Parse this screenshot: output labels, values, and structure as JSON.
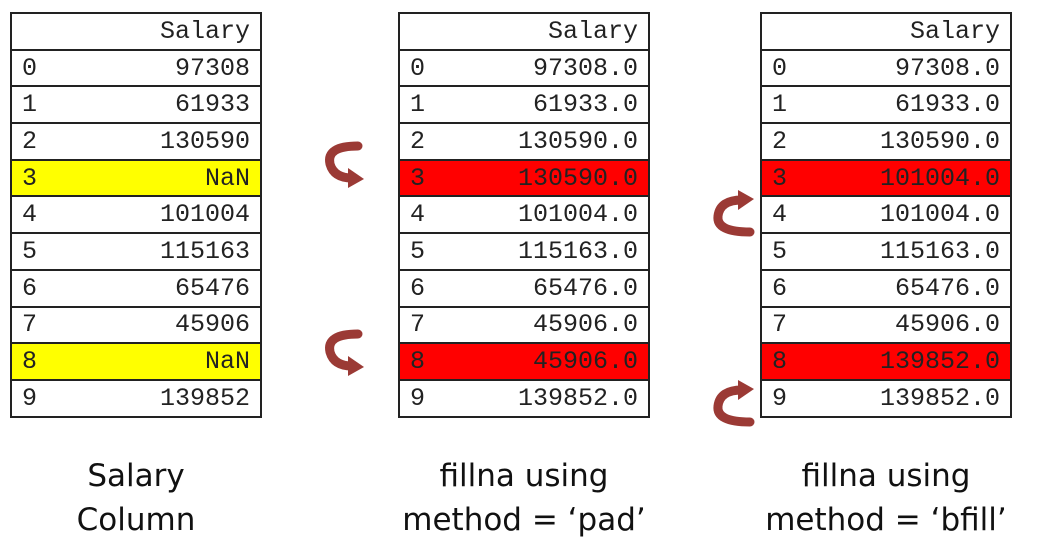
{
  "tables": [
    {
      "header": "Salary",
      "rows": [
        {
          "idx": "0",
          "val": "97308",
          "highlight": ""
        },
        {
          "idx": "1",
          "val": "61933",
          "highlight": ""
        },
        {
          "idx": "2",
          "val": "130590",
          "highlight": ""
        },
        {
          "idx": "3",
          "val": "NaN",
          "highlight": "yellow"
        },
        {
          "idx": "4",
          "val": "101004",
          "highlight": ""
        },
        {
          "idx": "5",
          "val": "115163",
          "highlight": ""
        },
        {
          "idx": "6",
          "val": "65476",
          "highlight": ""
        },
        {
          "idx": "7",
          "val": "45906",
          "highlight": ""
        },
        {
          "idx": "8",
          "val": "NaN",
          "highlight": "yellow"
        },
        {
          "idx": "9",
          "val": "139852",
          "highlight": ""
        }
      ],
      "caption": [
        "Salary",
        "Column"
      ]
    },
    {
      "header": "Salary",
      "rows": [
        {
          "idx": "0",
          "val": "97308.0",
          "highlight": ""
        },
        {
          "idx": "1",
          "val": "61933.0",
          "highlight": ""
        },
        {
          "idx": "2",
          "val": "130590.0",
          "highlight": ""
        },
        {
          "idx": "3",
          "val": "130590.0",
          "highlight": "red"
        },
        {
          "idx": "4",
          "val": "101004.0",
          "highlight": ""
        },
        {
          "idx": "5",
          "val": "115163.0",
          "highlight": ""
        },
        {
          "idx": "6",
          "val": "65476.0",
          "highlight": ""
        },
        {
          "idx": "7",
          "val": "45906.0",
          "highlight": ""
        },
        {
          "idx": "8",
          "val": "45906.0",
          "highlight": "red"
        },
        {
          "idx": "9",
          "val": "139852.0",
          "highlight": ""
        }
      ],
      "caption": [
        "fillna using",
        "method = ‘pad’"
      ]
    },
    {
      "header": "Salary",
      "rows": [
        {
          "idx": "0",
          "val": "97308.0",
          "highlight": ""
        },
        {
          "idx": "1",
          "val": "61933.0",
          "highlight": ""
        },
        {
          "idx": "2",
          "val": "130590.0",
          "highlight": ""
        },
        {
          "idx": "3",
          "val": "101004.0",
          "highlight": "red"
        },
        {
          "idx": "4",
          "val": "101004.0",
          "highlight": ""
        },
        {
          "idx": "5",
          "val": "115163.0",
          "highlight": ""
        },
        {
          "idx": "6",
          "val": "65476.0",
          "highlight": ""
        },
        {
          "idx": "7",
          "val": "45906.0",
          "highlight": ""
        },
        {
          "idx": "8",
          "val": "139852.0",
          "highlight": "red"
        },
        {
          "idx": "9",
          "val": "139852.0",
          "highlight": ""
        }
      ],
      "caption": [
        "fillna using",
        "method = ‘bfill’"
      ]
    }
  ],
  "colors": {
    "nan_highlight": "#ffff00",
    "filled_highlight": "#ff0000",
    "arrow": "#9b3a35"
  },
  "icons": {
    "pad_arrow": "curved-arrow-down-icon",
    "bfill_arrow": "curved-arrow-up-icon"
  }
}
